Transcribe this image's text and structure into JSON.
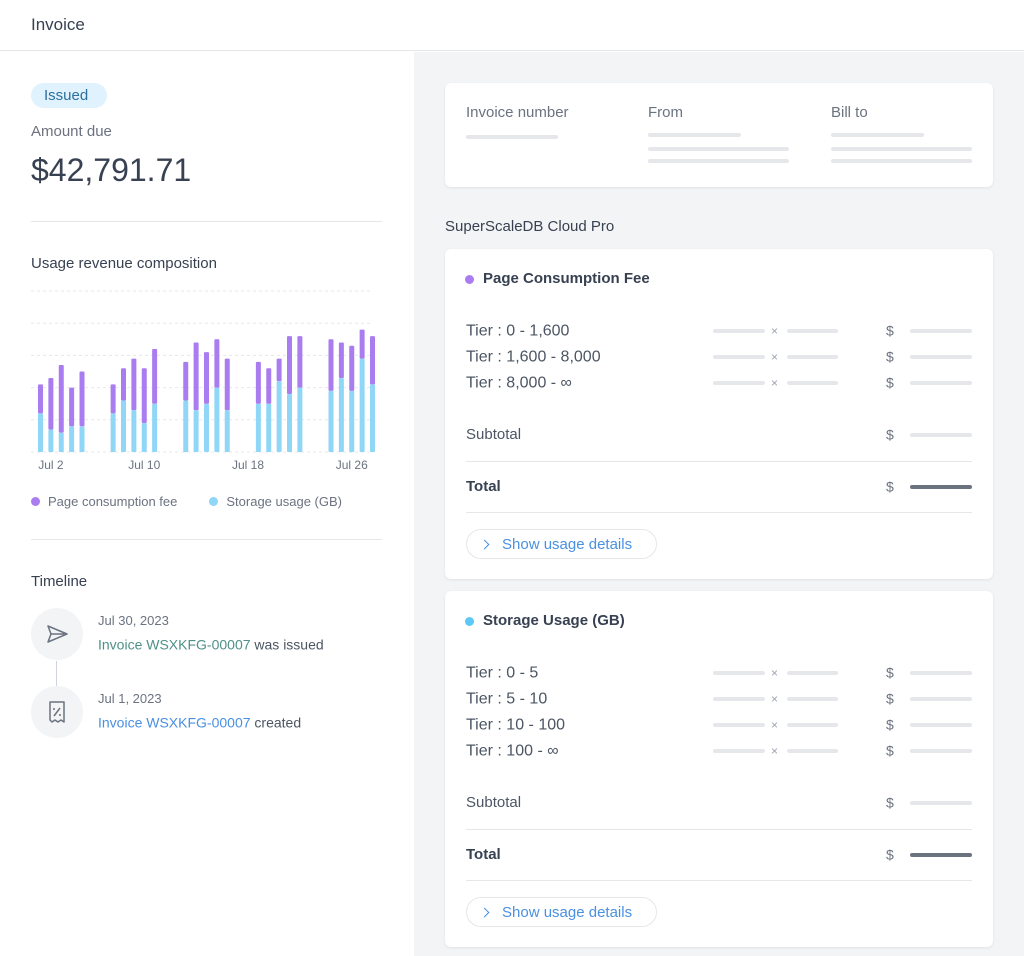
{
  "header": {
    "title": "Invoice"
  },
  "summary": {
    "status": "Issued",
    "amount_label": "Amount due",
    "amount": "$42,791.71"
  },
  "chart_data": {
    "type": "bar",
    "stacked": true,
    "title": "Usage revenue composition",
    "categories": [
      null,
      "Jul 2",
      null,
      null,
      null,
      null,
      null,
      null,
      null,
      null,
      "Jul 10",
      null,
      null,
      null,
      null,
      null,
      null,
      null,
      null,
      null,
      "Jul 18",
      null,
      null,
      null,
      null,
      null,
      null,
      null,
      null,
      null,
      "Jul 26",
      null,
      null
    ],
    "series": [
      {
        "name": "Page consumption fee",
        "color": "#a97cf0",
        "values": [
          0.9,
          1.6,
          2.1,
          1.2,
          1.7,
          null,
          null,
          0.9,
          1.0,
          1.6,
          1.7,
          1.7,
          null,
          null,
          1.2,
          2.1,
          1.6,
          1.5,
          1.6,
          null,
          null,
          1.3,
          1.1,
          0.7,
          1.8,
          1.6,
          null,
          null,
          1.6,
          1.1,
          1.4,
          0.9,
          1.5
        ]
      },
      {
        "name": "Storage usage (GB)",
        "color": "#8fd6f7",
        "values": [
          1.2,
          0.7,
          0.6,
          0.8,
          0.8,
          null,
          null,
          1.2,
          1.6,
          1.3,
          0.9,
          1.5,
          null,
          null,
          1.6,
          1.3,
          1.5,
          2.0,
          1.3,
          null,
          null,
          1.5,
          1.5,
          2.2,
          1.8,
          2.0,
          null,
          null,
          1.9,
          2.3,
          1.9,
          2.9,
          2.1
        ]
      }
    ],
    "ylim": [
      0,
      5
    ],
    "grid": true,
    "legend": "bottom"
  },
  "timeline": {
    "title": "Timeline",
    "events": [
      {
        "date": "Jul 30, 2023",
        "link": "Invoice WSXKFG-00007",
        "text": "was issued",
        "link_color": "#4f9089"
      },
      {
        "date": "Jul 1, 2023",
        "link": "Invoice WSXKFG-00007",
        "text": "created",
        "link_color": "#4a90e2"
      }
    ]
  },
  "invoice_meta": {
    "columns": [
      "Invoice number",
      "From",
      "Bill to"
    ]
  },
  "plan": "SuperScaleDB Cloud Pro",
  "multiply_sign": "×",
  "currency": "$",
  "subtotal_label": "Subtotal",
  "total_label": "Total",
  "details_button": "Show usage details",
  "sections": [
    {
      "name": "Page Consumption Fee",
      "color": "#a97cf0",
      "tiers": [
        "Tier : 0 - 1,600",
        "Tier : 1,600 - 8,000",
        "Tier : 8,000 - ∞"
      ]
    },
    {
      "name": "Storage Usage (GB)",
      "color": "#5bc8f5",
      "tiers": [
        "Tier : 0 - 5",
        "Tier : 5 - 10",
        "Tier : 10 - 100",
        "Tier : 100 - ∞"
      ]
    }
  ]
}
